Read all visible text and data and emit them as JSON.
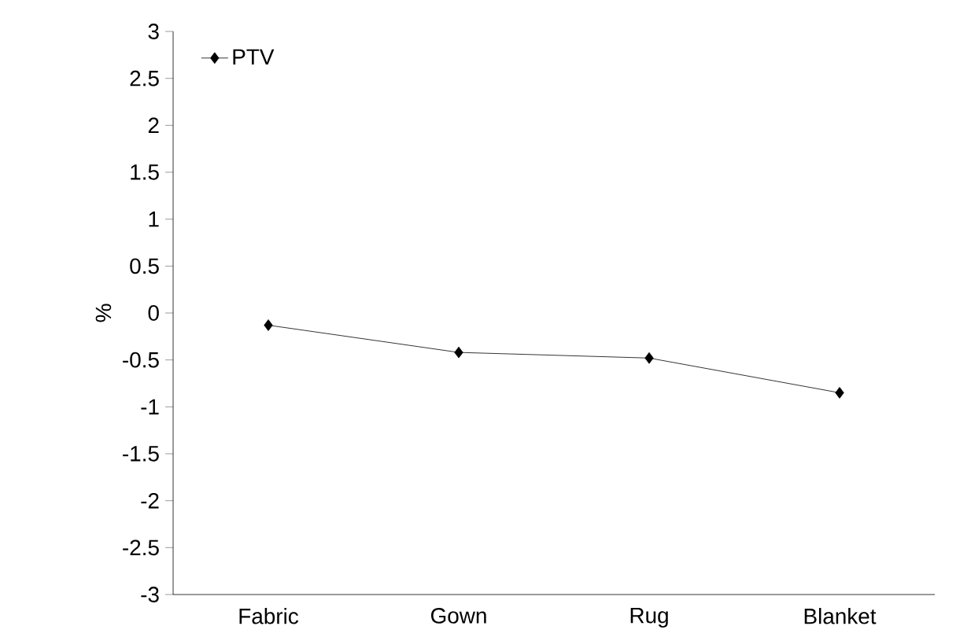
{
  "chart_data": {
    "type": "line",
    "ylabel": "%",
    "categories": [
      "Fabric",
      "Gown",
      "Rug",
      "Blanket"
    ],
    "series": [
      {
        "name": "PTV",
        "color": "#000000",
        "values": [
          -0.13,
          -0.42,
          -0.48,
          -0.85
        ]
      }
    ],
    "ylim": [
      -3,
      3
    ],
    "yticks": [
      -3,
      -2.5,
      -2,
      -1.5,
      -1,
      -0.5,
      0,
      0.5,
      1,
      1.5,
      2,
      2.5,
      3
    ],
    "marker": "diamond",
    "line_style": "solid",
    "legend": "top left",
    "grid": false
  }
}
